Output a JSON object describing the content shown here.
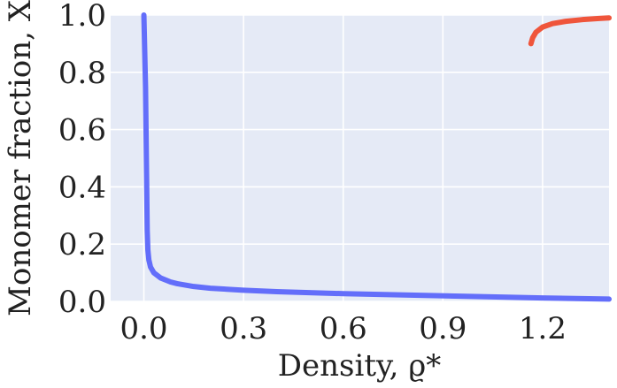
{
  "chart_data": {
    "type": "line",
    "xlabel": "Density, ϱ*",
    "ylabel": "Monomer fraction, X",
    "xlim": [
      -0.1,
      1.4
    ],
    "ylim": [
      0.0,
      1.0
    ],
    "xticks": [
      0.0,
      0.3,
      0.6,
      0.9,
      1.2
    ],
    "yticks": [
      0.0,
      0.2,
      0.4,
      0.6,
      0.8,
      1.0
    ],
    "xtick_labels": [
      "0.0",
      "0.3",
      "0.6",
      "0.9",
      "1.2"
    ],
    "ytick_labels": [
      "0.0",
      "0.2",
      "0.4",
      "0.6",
      "0.8",
      "1.0"
    ],
    "grid": true,
    "background": "#e5eaf6",
    "series": [
      {
        "color": "#636efa",
        "x": [
          0.0,
          0.005,
          0.008,
          0.01,
          0.012,
          0.015,
          0.02,
          0.03,
          0.05,
          0.08,
          0.1,
          0.15,
          0.2,
          0.3,
          0.4,
          0.6,
          0.8,
          1.0,
          1.2,
          1.4
        ],
        "y": [
          1.0,
          0.75,
          0.45,
          0.25,
          0.18,
          0.145,
          0.12,
          0.1,
          0.082,
          0.068,
          0.062,
          0.052,
          0.046,
          0.039,
          0.034,
          0.027,
          0.022,
          0.017,
          0.012,
          0.008
        ]
      },
      {
        "color": "#ef553b",
        "x": [
          1.165,
          1.17,
          1.18,
          1.2,
          1.23,
          1.27,
          1.32,
          1.37,
          1.4
        ],
        "y": [
          0.9,
          0.92,
          0.94,
          0.958,
          0.97,
          0.978,
          0.984,
          0.988,
          0.99
        ]
      }
    ]
  }
}
